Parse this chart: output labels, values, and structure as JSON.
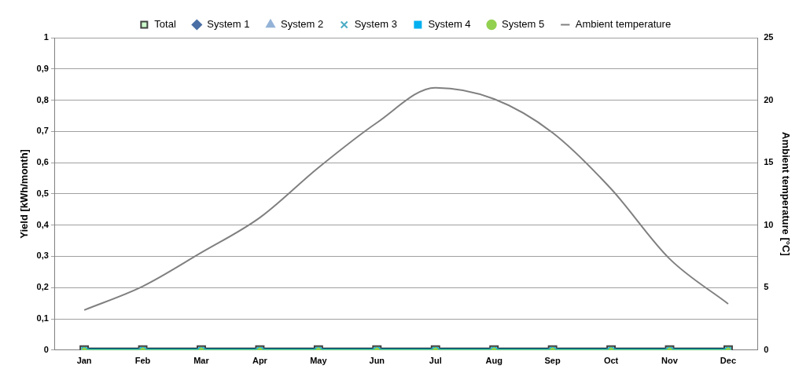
{
  "chart_data": {
    "type": "line",
    "categories": [
      "Jan",
      "Feb",
      "Mar",
      "Apr",
      "May",
      "Jun",
      "Jul",
      "Aug",
      "Sep",
      "Oct",
      "Nov",
      "Dec"
    ],
    "ylabel": "Yield [kWh/month]",
    "y2label": "Ambient temperature [°C]",
    "series": [
      {
        "name": "Total",
        "color": "#000000",
        "marker": "square",
        "values": [
          0,
          0,
          0,
          0,
          0,
          0,
          0,
          0,
          0,
          0,
          0,
          0
        ]
      },
      {
        "name": "System 1",
        "color": "#4a6fa5",
        "marker": "diamond",
        "values": [
          null,
          null,
          null,
          null,
          null,
          null,
          null,
          null,
          null,
          null,
          null,
          null
        ]
      },
      {
        "name": "System 2",
        "color": "#95b3d7",
        "marker": "triangle",
        "values": [
          null,
          null,
          null,
          null,
          null,
          null,
          null,
          null,
          null,
          null,
          null,
          null
        ]
      },
      {
        "name": "System 3",
        "color": "#4bacc6",
        "marker": "cross",
        "values": [
          null,
          null,
          null,
          null,
          null,
          null,
          null,
          null,
          null,
          null,
          null,
          null
        ]
      },
      {
        "name": "System 4",
        "color": "#00b0f0",
        "marker": "square",
        "values": [
          0,
          0,
          0,
          0,
          0,
          0,
          0,
          0,
          0,
          0,
          0,
          0
        ]
      },
      {
        "name": "System 5",
        "color": "#92d050",
        "marker": "circle",
        "values": [
          0,
          0,
          0,
          0,
          0,
          0,
          0,
          0,
          0,
          0,
          0,
          0
        ]
      },
      {
        "name": "Ambient temperature",
        "color": "#808080",
        "marker": "none",
        "axis": "y2",
        "values": [
          3.2,
          5.1,
          7.8,
          10.6,
          14.6,
          18.2,
          21.0,
          20.1,
          17.4,
          12.9,
          7.3,
          3.7
        ]
      }
    ],
    "ylim": [
      0,
      1
    ],
    "yticks": [
      0,
      {
        "value": 0.1,
        "label": "0,1"
      },
      {
        "value": 0.2,
        "label": "0,2"
      },
      {
        "value": 0.3,
        "label": "0,3"
      },
      {
        "value": 0.4,
        "label": "0,4"
      },
      {
        "value": 0.5,
        "label": "0,5"
      },
      {
        "value": 0.6,
        "label": "0,6"
      },
      {
        "value": 0.7,
        "label": "0,7"
      },
      {
        "value": 0.8,
        "label": "0,8"
      },
      {
        "value": 0.9,
        "label": "0,9"
      },
      1
    ],
    "y2lim": [
      0,
      25
    ],
    "y2ticks": [
      0,
      5,
      10,
      15,
      20,
      25
    ],
    "grid": "y",
    "legend": "top"
  }
}
